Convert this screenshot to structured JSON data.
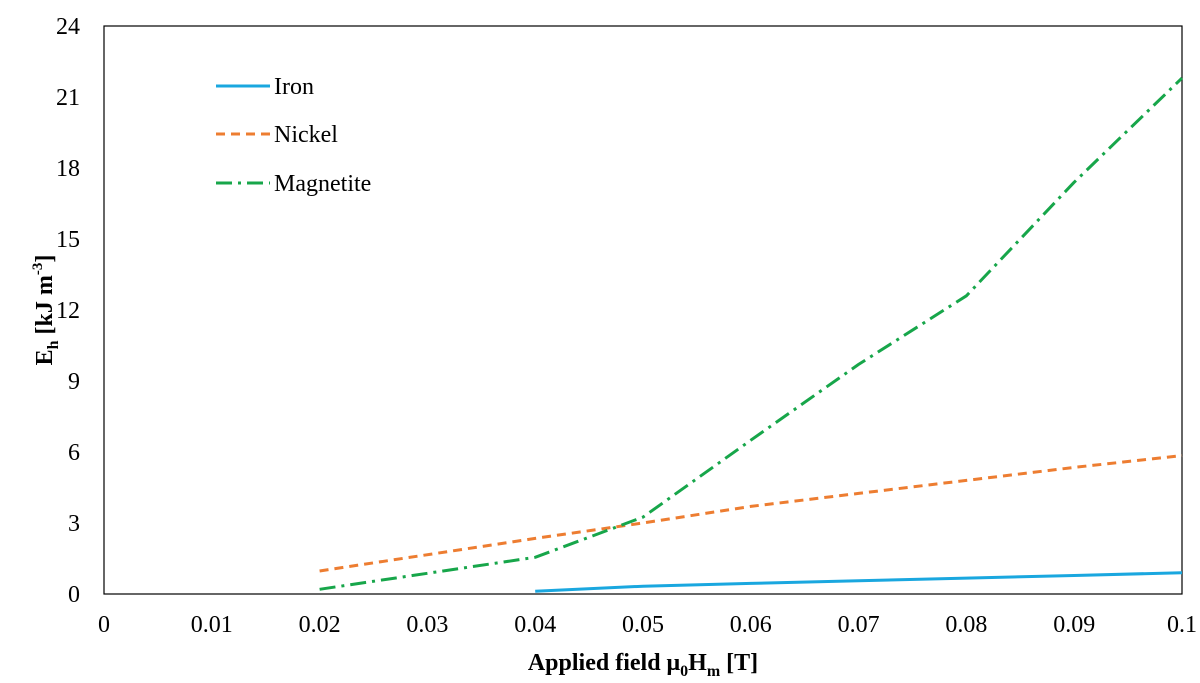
{
  "chart_data": {
    "type": "line",
    "xlabel": {
      "main": "Applied field μ",
      "sub1": "0",
      "mid": "H",
      "sub2": "m",
      "tail": " [T]"
    },
    "ylabel": {
      "main": "E",
      "sub": "h",
      "mid": " [kJ m",
      "sup": "-3",
      "tail": "]"
    },
    "xlim": [
      0,
      0.1
    ],
    "ylim": [
      0,
      24
    ],
    "xticks": [
      0,
      0.01,
      0.02,
      0.03,
      0.04,
      0.05,
      0.06,
      0.07,
      0.08,
      0.09,
      0.1
    ],
    "xtick_labels": [
      "0",
      "0.01",
      "0.02",
      "0.03",
      "0.04",
      "0.05",
      "0.06",
      "0.07",
      "0.08",
      "0.09",
      "0.1"
    ],
    "yticks": [
      0,
      3,
      6,
      9,
      12,
      15,
      18,
      21,
      24
    ],
    "ytick_labels": [
      "0",
      "3",
      "6",
      "9",
      "12",
      "15",
      "18",
      "21",
      "24"
    ],
    "grid": false,
    "legend_position": "top-left",
    "series": [
      {
        "name": "Iron",
        "color": "#1aa7df",
        "style": "solid",
        "x": [
          0.04,
          0.05,
          0.06,
          0.07,
          0.08,
          0.09,
          0.1
        ],
        "y": [
          0.12,
          0.33,
          0.45,
          0.56,
          0.67,
          0.78,
          0.9
        ]
      },
      {
        "name": "Nickel",
        "color": "#ed7d31",
        "style": "dashed",
        "x": [
          0.02,
          0.04,
          0.05,
          0.06,
          0.07,
          0.08,
          0.09,
          0.1
        ],
        "y": [
          0.97,
          2.35,
          3.0,
          3.7,
          4.25,
          4.8,
          5.35,
          5.85
        ]
      },
      {
        "name": "Magnetite",
        "color": "#17a64a",
        "style": "dashdot",
        "x": [
          0.02,
          0.04,
          0.05,
          0.06,
          0.07,
          0.08,
          0.09,
          0.1
        ],
        "y": [
          0.2,
          1.55,
          3.25,
          6.5,
          9.7,
          12.6,
          17.4,
          21.8
        ]
      }
    ]
  }
}
